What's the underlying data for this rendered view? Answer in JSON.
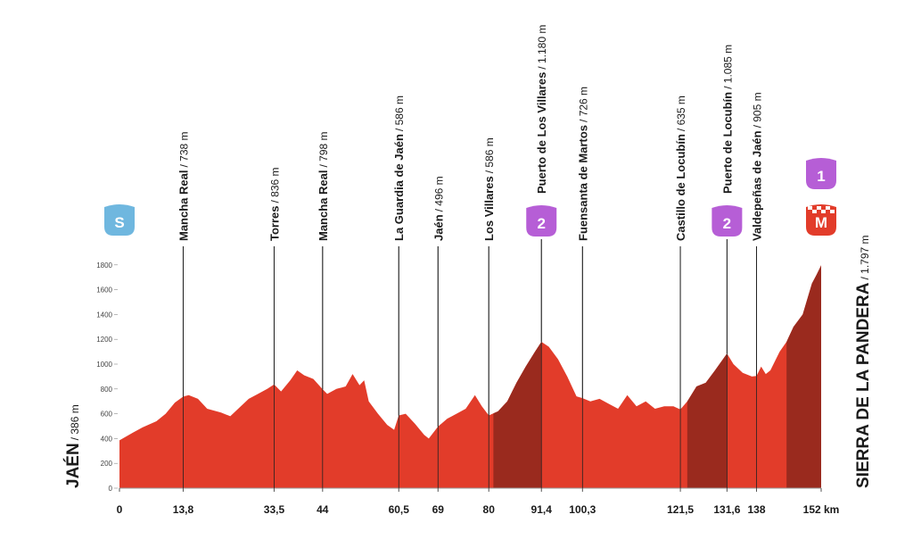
{
  "chart_data": {
    "type": "area",
    "x": [
      0,
      3,
      5,
      8,
      10,
      12,
      13.8,
      15,
      17,
      19,
      22,
      24,
      26,
      28,
      30,
      32,
      33.5,
      35,
      37,
      38.5,
      40,
      42,
      44,
      45,
      47,
      49,
      50.5,
      52,
      53,
      54,
      56,
      58,
      59.5,
      60.5,
      62,
      64,
      66,
      67,
      69,
      71,
      73,
      75,
      77,
      78.5,
      80,
      82,
      84,
      86,
      88,
      90,
      91.4,
      93,
      95,
      97,
      99,
      100.3,
      102,
      104,
      106,
      108,
      110,
      112,
      114,
      116,
      118,
      120,
      121.5,
      123,
      125,
      127,
      129,
      131.6,
      133,
      135,
      137,
      138,
      139,
      140,
      141,
      143,
      144.5,
      146,
      148,
      150,
      151,
      152
    ],
    "values": [
      386,
      450,
      490,
      540,
      600,
      690,
      738,
      750,
      720,
      640,
      610,
      580,
      650,
      720,
      760,
      800,
      836,
      780,
      870,
      950,
      910,
      880,
      798,
      760,
      800,
      820,
      920,
      830,
      870,
      700,
      600,
      510,
      470,
      586,
      600,
      520,
      430,
      400,
      496,
      560,
      600,
      640,
      750,
      660,
      586,
      620,
      700,
      850,
      980,
      1100,
      1180,
      1140,
      1040,
      900,
      740,
      726,
      700,
      720,
      680,
      640,
      750,
      660,
      700,
      640,
      660,
      660,
      635,
      700,
      820,
      850,
      950,
      1085,
      1000,
      930,
      900,
      905,
      980,
      920,
      950,
      1100,
      1180,
      1300,
      1400,
      1650,
      1720,
      1797
    ],
    "color": "#e23c2a",
    "climb_color": "#9a2a1e",
    "climbs": [
      {
        "start": 81,
        "end": 91.4
      },
      {
        "start": 123,
        "end": 131.6
      },
      {
        "start": 144.5,
        "end": 152
      }
    ],
    "xlim": [
      0,
      152
    ],
    "ylim": [
      0,
      2000
    ],
    "xticks": [
      0,
      {
        "value": 13.8,
        "label": "13,8"
      },
      {
        "value": 33.5,
        "label": "33,5"
      },
      44,
      {
        "value": 60.5,
        "label": "60,5"
      },
      69,
      80,
      {
        "value": 91.4,
        "label": "91,4"
      },
      {
        "value": 100.3,
        "label": "100,3"
      },
      {
        "value": 121.5,
        "label": "121,5"
      },
      {
        "value": 131.6,
        "label": "131,6"
      },
      138,
      {
        "value": 152,
        "label": "152 km"
      }
    ],
    "yticks": [
      0,
      200,
      400,
      600,
      800,
      1000,
      1200,
      1400,
      1600,
      1800
    ],
    "start": {
      "name": "JAÉN",
      "altitude": "/ 386 m",
      "badge": "S",
      "badge_color": "#6fb7df"
    },
    "finish": {
      "name": "SIERRA DE LA PANDERA",
      "altitude": "/ 1.797 m",
      "badges": [
        "1",
        "M"
      ],
      "badge_colors": [
        "#b65ed6",
        "#e23c2a"
      ]
    },
    "waypoints": [
      {
        "name": "Mancha Real",
        "altitude": "/ 738 m",
        "km": 13.8
      },
      {
        "name": "Torres",
        "altitude": "/ 836 m",
        "km": 33.5
      },
      {
        "name": "Mancha Real",
        "altitude": "/ 798 m",
        "km": 44
      },
      {
        "name": "La Guardia de Jaén",
        "altitude": "/ 586 m",
        "km": 60.5
      },
      {
        "name": "Jaén",
        "altitude": "/ 496 m",
        "km": 69
      },
      {
        "name": "Los Villares",
        "altitude": "/ 586 m",
        "km": 80
      },
      {
        "name": "Puerto de Los Villares",
        "altitude": "/ 1.180 m",
        "km": 91.4,
        "badge": "2"
      },
      {
        "name": "Fuensanta de Martos",
        "altitude": "/ 726 m",
        "km": 100.3
      },
      {
        "name": "Castillo de Locubín",
        "altitude": "/ 635 m",
        "km": 121.5
      },
      {
        "name": "Puerto de Locubín",
        "altitude": "/ 1.085 m",
        "km": 131.6,
        "badge": "2"
      },
      {
        "name": "Valdepeñas de Jaén",
        "altitude": "/ 905 m",
        "km": 138
      }
    ],
    "badge_color": "#b65ed6"
  }
}
